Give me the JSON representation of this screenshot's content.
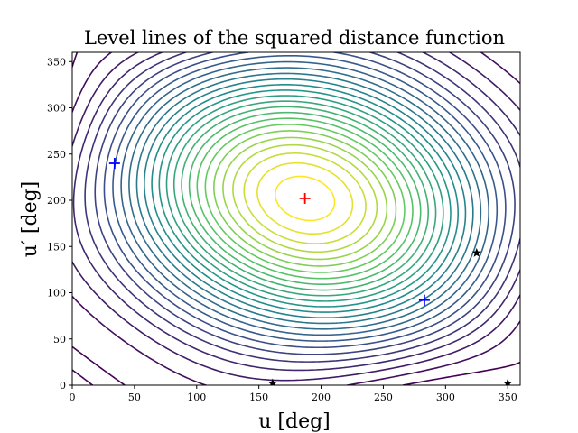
{
  "chart_data": {
    "type": "contour",
    "title": "Level lines of the squared distance function",
    "xlabel": "u [deg]",
    "ylabel": "u′ [deg]",
    "xlim": [
      0,
      360
    ],
    "ylim": [
      0,
      360
    ],
    "xticks": [
      0,
      50,
      100,
      150,
      200,
      250,
      300,
      350
    ],
    "yticks": [
      0,
      50,
      100,
      150,
      200,
      250,
      300,
      350
    ],
    "grid": false,
    "colormap": [
      "#440154",
      "#3b528b",
      "#21918c",
      "#5ec962",
      "#fde725"
    ],
    "maximum": {
      "u": 187,
      "u_prime": 202,
      "marker": "plus",
      "color": "#ff0000"
    },
    "minima": [
      {
        "u": 34,
        "u_prime": 240,
        "marker": "plus",
        "color": "#0000ff"
      },
      {
        "u": 283,
        "u_prime": 92,
        "marker": "plus",
        "color": "#0000ff"
      }
    ],
    "saddles": [
      {
        "u": 325,
        "u_prime": 143,
        "marker": "star",
        "color": "#000000"
      },
      {
        "u": 161,
        "u_prime": 2,
        "marker": "star",
        "color": "#000000"
      },
      {
        "u": 350,
        "u_prime": 2,
        "marker": "star",
        "color": "#000000"
      }
    ]
  }
}
